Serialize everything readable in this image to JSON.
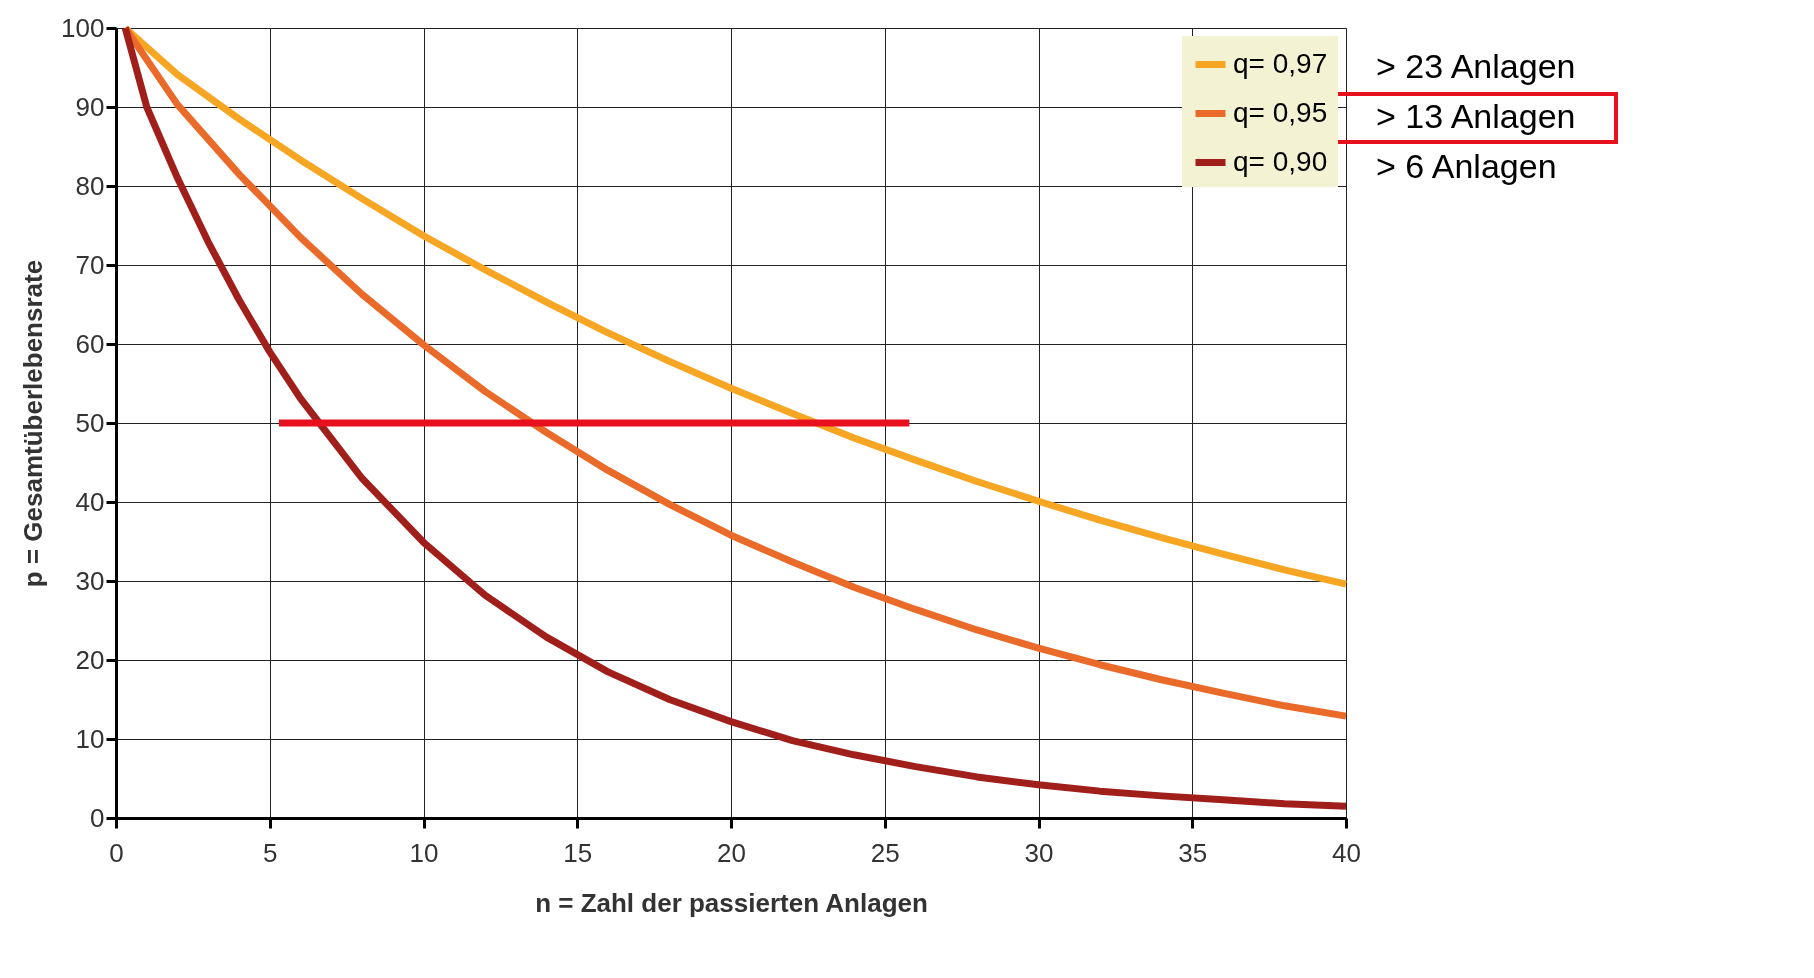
{
  "chart_data": {
    "type": "line",
    "xlabel": "n = Zahl der passierten Anlagen",
    "ylabel": "p = Gesamtüberlebensrate",
    "xlim": [
      0,
      40
    ],
    "ylim": [
      0,
      100
    ],
    "xticks": [
      0,
      5,
      10,
      15,
      20,
      25,
      30,
      35,
      40
    ],
    "yticks": [
      0,
      10,
      20,
      30,
      40,
      50,
      60,
      70,
      80,
      90,
      100
    ],
    "grid": true,
    "legend": "top right",
    "marker": "none",
    "line_style": "solid",
    "series": [
      {
        "name": "q= 0,97",
        "color": "#f6a623",
        "x": [
          0.3,
          2,
          4,
          6,
          8,
          10,
          12,
          14,
          16,
          18,
          20,
          22,
          24,
          26,
          28,
          30,
          32,
          34,
          36,
          38,
          40
        ],
        "values": [
          100,
          94.1,
          88.5,
          83.3,
          78.4,
          73.7,
          69.4,
          65.3,
          61.4,
          57.8,
          54.4,
          51.2,
          48.1,
          45.3,
          42.6,
          40.1,
          37.7,
          35.5,
          33.4,
          31.4,
          29.6
        ]
      },
      {
        "name": "q= 0,95",
        "color": "#ea6a2a",
        "x": [
          0.3,
          2,
          4,
          6,
          8,
          10,
          12,
          14,
          16,
          18,
          20,
          22,
          24,
          26,
          28,
          30,
          32,
          34,
          36,
          38,
          40
        ],
        "values": [
          100,
          90.3,
          81.5,
          73.5,
          66.3,
          59.9,
          54.0,
          48.8,
          44.0,
          39.7,
          35.8,
          32.4,
          29.2,
          26.4,
          23.8,
          21.5,
          19.4,
          17.5,
          15.8,
          14.2,
          12.9
        ]
      },
      {
        "name": "q= 0,90",
        "color": "#a01f1a",
        "x": [
          0.3,
          1,
          2,
          3,
          4,
          5,
          6,
          8,
          10,
          12,
          14,
          16,
          18,
          20,
          22,
          24,
          26,
          28,
          30,
          32,
          34,
          36,
          38,
          40
        ],
        "values": [
          100,
          90,
          81,
          72.9,
          65.6,
          59.0,
          53.1,
          43.0,
          34.9,
          28.2,
          22.9,
          18.5,
          15.0,
          12.2,
          9.8,
          8.0,
          6.5,
          5.2,
          4.2,
          3.4,
          2.8,
          2.3,
          1.8,
          1.5
        ]
      },
      {
        "type": "line",
        "color": "#e8101e",
        "x": [
          5.3,
          25.8
        ],
        "values": [
          50,
          50
        ]
      }
    ],
    "annotations": [
      "> 23 Anlagen",
      "> 13 Anlagen",
      ">  6 Anlagen"
    ]
  }
}
